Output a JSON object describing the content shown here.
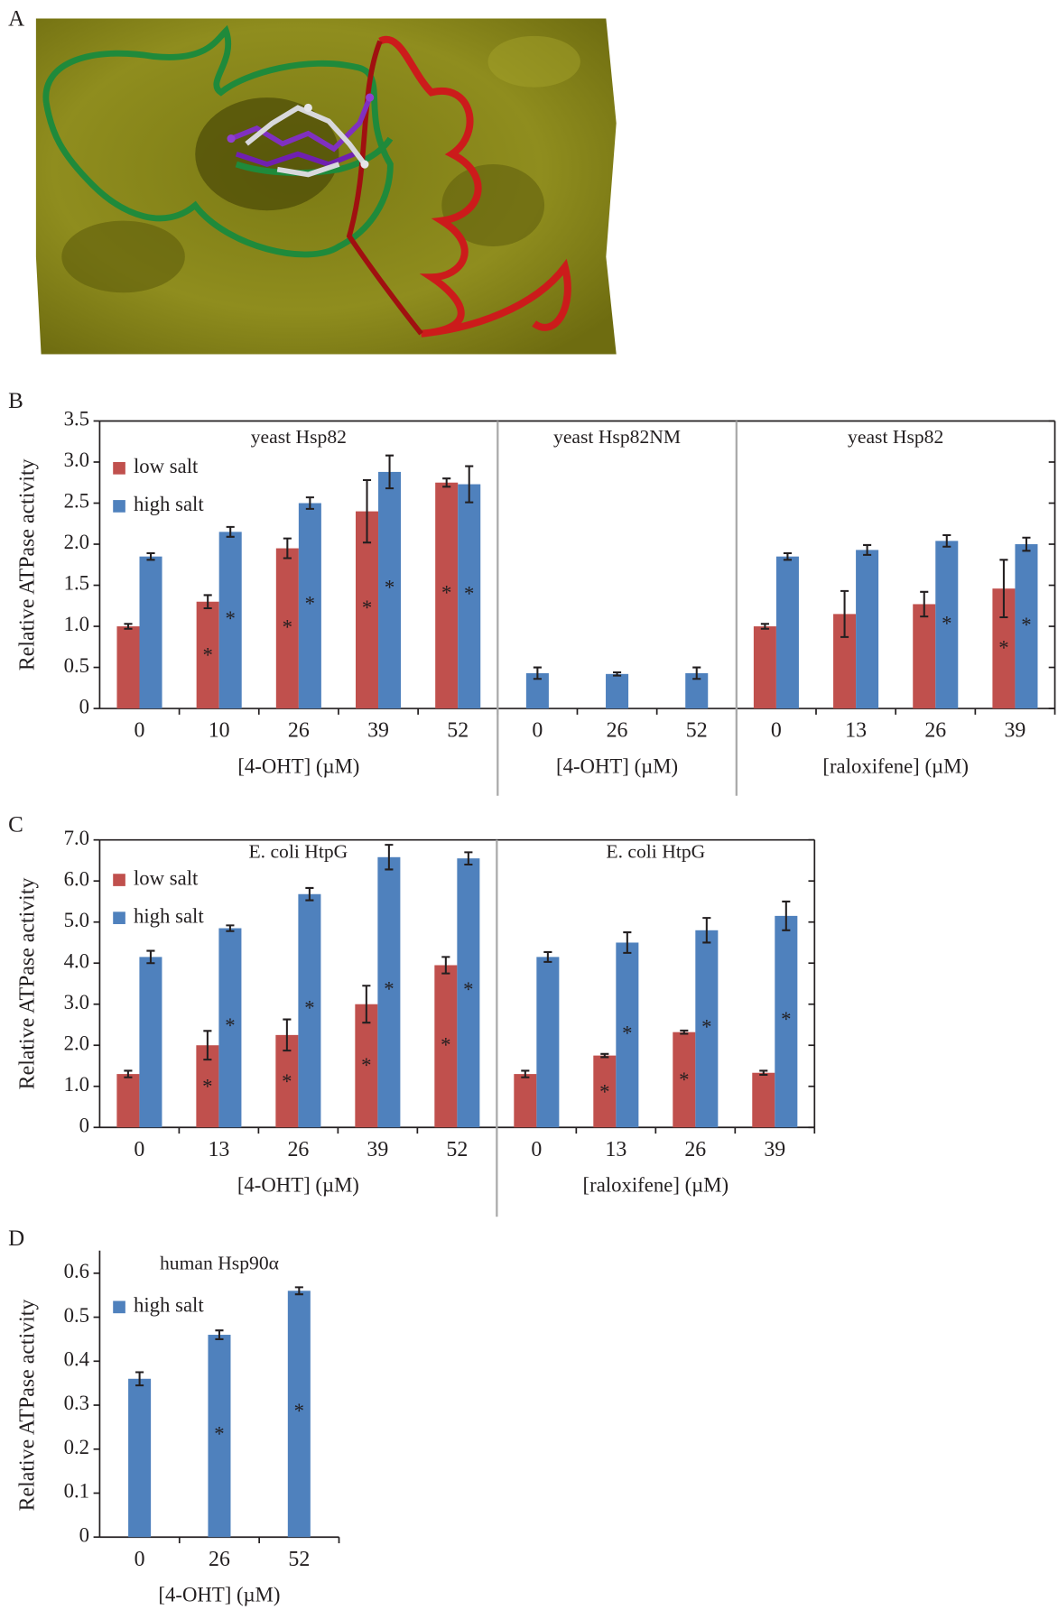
{
  "figure_a": {
    "panel": "A"
  },
  "chart_data": [
    {
      "type": "bar",
      "panel": "B",
      "ylabel": "Relative ATPase activity",
      "ylim": [
        0,
        3.5
      ],
      "yticks": [
        0,
        0.5,
        {
          "value": 1,
          "label": "1.0"
        },
        1.5,
        {
          "value": 2,
          "label": "2.0"
        },
        2.5,
        {
          "value": 3,
          "label": "3.0"
        },
        3.5
      ],
      "frame": true,
      "marker": "*",
      "series": [
        {
          "name": "low salt",
          "color": "#c0504d"
        },
        {
          "name": "high salt",
          "color": "#4f81bd"
        }
      ],
      "groups": [
        {
          "title": "yeast Hsp82",
          "xlabel": "[4-OHT] (µM)",
          "categories": [
            "0",
            "10",
            "26",
            "39",
            "52"
          ],
          "values": [
            [
              1.0,
              1.3,
              1.95,
              2.4,
              2.75
            ],
            [
              1.85,
              2.15,
              2.5,
              2.88,
              2.73
            ]
          ],
          "errors": [
            [
              0.03,
              0.08,
              0.12,
              0.38,
              0.05
            ],
            [
              0.04,
              0.06,
              0.07,
              0.2,
              0.22
            ]
          ],
          "significant": [
            [
              false,
              true,
              true,
              true,
              true
            ],
            [
              false,
              true,
              true,
              true,
              true
            ]
          ]
        },
        {
          "title": "yeast Hsp82NM",
          "xlabel": "[4-OHT] (µM)",
          "categories": [
            "0",
            "26",
            "52"
          ],
          "values": [
            [
              null,
              null,
              null
            ],
            [
              0.43,
              0.42,
              0.43
            ]
          ],
          "errors": [
            [
              null,
              null,
              null
            ],
            [
              0.07,
              0.02,
              0.07
            ]
          ],
          "significant": [
            [
              false,
              false,
              false
            ],
            [
              false,
              false,
              false
            ]
          ]
        },
        {
          "title": "yeast Hsp82",
          "xlabel": "[raloxifene] (µM)",
          "categories": [
            "0",
            "13",
            "26",
            "39"
          ],
          "values": [
            [
              1.0,
              1.15,
              1.27,
              1.46
            ],
            [
              1.85,
              1.93,
              2.04,
              2.0
            ]
          ],
          "errors": [
            [
              0.03,
              0.28,
              0.15,
              0.35
            ],
            [
              0.04,
              0.06,
              0.07,
              0.08
            ]
          ],
          "significant": [
            [
              false,
              false,
              false,
              true
            ],
            [
              false,
              false,
              true,
              true
            ]
          ]
        }
      ]
    },
    {
      "type": "bar",
      "panel": "C",
      "ylabel": "Relative ATPase activity",
      "ylim": [
        0,
        7
      ],
      "yticks": [
        0,
        {
          "value": 1,
          "label": "1.0"
        },
        {
          "value": 2,
          "label": "2.0"
        },
        {
          "value": 3,
          "label": "3.0"
        },
        {
          "value": 4,
          "label": "4.0"
        },
        {
          "value": 5,
          "label": "5.0"
        },
        {
          "value": 6,
          "label": "6.0"
        },
        {
          "value": 7,
          "label": "7.0"
        }
      ],
      "frame": true,
      "marker": "*",
      "series": [
        {
          "name": "low salt",
          "color": "#c0504d"
        },
        {
          "name": "high salt",
          "color": "#4f81bd"
        }
      ],
      "groups": [
        {
          "title": "E. coli HtpG",
          "xlabel": "[4-OHT] (µM)",
          "categories": [
            "0",
            "13",
            "26",
            "39",
            "52"
          ],
          "values": [
            [
              1.3,
              2.0,
              2.25,
              3.0,
              3.95
            ],
            [
              4.15,
              4.85,
              5.68,
              6.58,
              6.55
            ]
          ],
          "errors": [
            [
              0.08,
              0.35,
              0.38,
              0.45,
              0.2
            ],
            [
              0.15,
              0.07,
              0.15,
              0.3,
              0.15
            ]
          ],
          "significant": [
            [
              false,
              true,
              true,
              true,
              true
            ],
            [
              false,
              true,
              true,
              true,
              true
            ]
          ]
        },
        {
          "title": "E. coli HtpG",
          "xlabel": "[raloxifene] (µM)",
          "categories": [
            "0",
            "13",
            "26",
            "39"
          ],
          "values": [
            [
              1.3,
              1.75,
              2.32,
              1.33
            ],
            [
              4.15,
              4.5,
              4.8,
              5.15
            ]
          ],
          "errors": [
            [
              0.08,
              0.04,
              0.04,
              0.05
            ],
            [
              0.12,
              0.25,
              0.3,
              0.35
            ]
          ],
          "significant": [
            [
              false,
              true,
              true,
              false
            ],
            [
              false,
              true,
              true,
              true
            ]
          ]
        }
      ]
    },
    {
      "type": "bar",
      "panel": "D",
      "ylabel": "Relative ATPase activity",
      "ylim": [
        0,
        0.6
      ],
      "yticks": [
        0,
        0.1,
        0.2,
        0.3,
        0.4,
        0.5,
        0.6
      ],
      "frame": false,
      "marker": "*",
      "series": [
        {
          "name": "high salt",
          "color": "#4f81bd"
        }
      ],
      "groups": [
        {
          "title": "human Hsp90α",
          "xlabel": "[4-OHT] (µM)",
          "categories": [
            "0",
            "26",
            "52"
          ],
          "values": [
            [
              0.36,
              0.46,
              0.56
            ]
          ],
          "errors": [
            [
              0.015,
              0.01,
              0.008
            ]
          ],
          "significant": [
            [
              false,
              true,
              true
            ]
          ]
        }
      ]
    }
  ]
}
